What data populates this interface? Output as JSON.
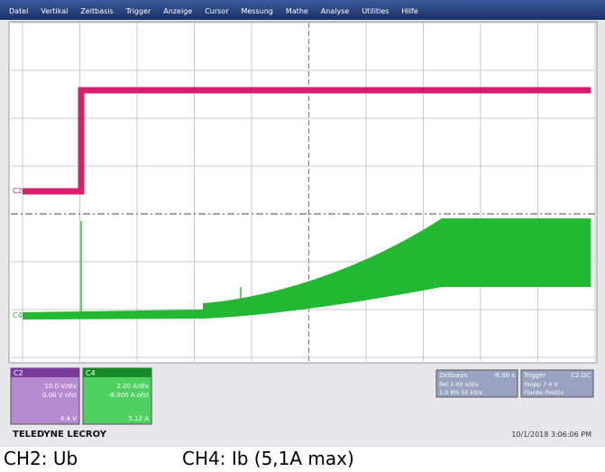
{
  "menu": [
    "Datei",
    "Vertikal",
    "Zeitbasis",
    "Trigger",
    "Anzeige",
    "Cursor",
    "Messung",
    "Mathe",
    "Analyse",
    "Utilities",
    "Hilfe"
  ],
  "channels": [
    {
      "name": "C2",
      "scale": "10.0 V/div",
      "offset": "0.00 V ofst",
      "reading": "4.4 V"
    },
    {
      "name": "C4",
      "scale": "2.00 A/div",
      "offset": "-6.000 A ofst",
      "reading": "5.12 A"
    }
  ],
  "timebase": {
    "title": "Zeitbasis",
    "value": "-8.00 s",
    "lines": [
      "Rel  2.00 s/div",
      "1.0 MS  50 kS/s"
    ]
  },
  "trigger": {
    "title": "Trigger",
    "value": "C2 DC",
    "lines": [
      "Stopp  7.4 V",
      "Flanke  Positiv"
    ]
  },
  "brand": "TELEDYNE LECROY",
  "timestamp": "10/1/2018 3:06:06 PM",
  "captions": [
    "CH2: Ub",
    "CH4: Ib (5,1A max)"
  ]
}
